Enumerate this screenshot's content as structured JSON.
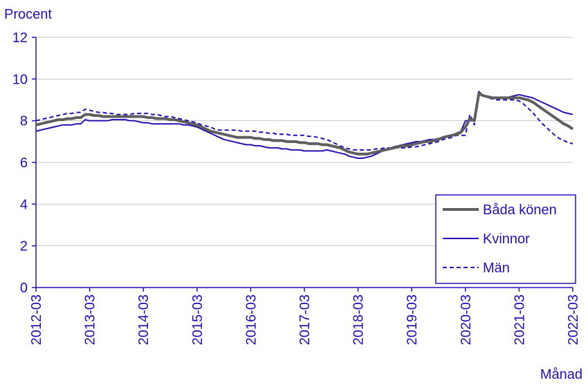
{
  "chart_data": {
    "type": "line",
    "y_label": "Procent",
    "x_label": "Månad",
    "x": [
      "2012-03",
      "2012-04",
      "2012-05",
      "2012-06",
      "2012-07",
      "2012-08",
      "2012-09",
      "2012-10",
      "2012-11",
      "2012-12",
      "2013-01",
      "2013-02",
      "2013-03",
      "2013-04",
      "2013-05",
      "2013-06",
      "2013-07",
      "2013-08",
      "2013-09",
      "2013-10",
      "2013-11",
      "2013-12",
      "2014-01",
      "2014-02",
      "2014-03",
      "2014-04",
      "2014-05",
      "2014-06",
      "2014-07",
      "2014-08",
      "2014-09",
      "2014-10",
      "2014-11",
      "2014-12",
      "2015-01",
      "2015-02",
      "2015-03",
      "2015-04",
      "2015-05",
      "2015-06",
      "2015-07",
      "2015-08",
      "2015-09",
      "2015-10",
      "2015-11",
      "2015-12",
      "2016-01",
      "2016-02",
      "2016-03",
      "2016-04",
      "2016-05",
      "2016-06",
      "2016-07",
      "2016-08",
      "2016-09",
      "2016-10",
      "2016-11",
      "2016-12",
      "2017-01",
      "2017-02",
      "2017-03",
      "2017-04",
      "2017-05",
      "2017-06",
      "2017-07",
      "2017-08",
      "2017-09",
      "2017-10",
      "2017-11",
      "2017-12",
      "2018-01",
      "2018-02",
      "2018-03",
      "2018-04",
      "2018-05",
      "2018-06",
      "2018-07",
      "2018-08",
      "2018-09",
      "2018-10",
      "2018-11",
      "2018-12",
      "2019-01",
      "2019-02",
      "2019-03",
      "2019-04",
      "2019-05",
      "2019-06",
      "2019-07",
      "2019-08",
      "2019-09",
      "2019-10",
      "2019-11",
      "2019-12",
      "2020-01",
      "2020-02",
      "2020-03",
      "2020-04",
      "2020-05",
      "2020-06",
      "2020-07",
      "2020-08",
      "2020-09",
      "2020-10",
      "2020-11",
      "2020-12",
      "2021-01",
      "2021-02",
      "2021-03",
      "2021-04",
      "2021-05",
      "2021-06",
      "2021-07",
      "2021-08",
      "2021-09",
      "2021-10",
      "2021-11",
      "2021-12",
      "2022-01",
      "2022-02",
      "2022-03"
    ],
    "xticks": [
      "2012-03",
      "2013-03",
      "2014-03",
      "2015-03",
      "2016-03",
      "2017-03",
      "2018-03",
      "2019-03",
      "2020-03",
      "2021-03",
      "2022-03"
    ],
    "ylim": [
      0,
      12
    ],
    "yticks": [
      0,
      2,
      4,
      6,
      8,
      10,
      12
    ],
    "grid": true,
    "legend": "lower right",
    "series": [
      {
        "name": "Båda könen",
        "color": "#5f5f5f",
        "style": "solid",
        "width": 4,
        "values": [
          7.8,
          7.85,
          7.9,
          7.95,
          8.0,
          8.05,
          8.05,
          8.1,
          8.1,
          8.15,
          8.15,
          8.3,
          8.3,
          8.25,
          8.25,
          8.2,
          8.2,
          8.2,
          8.2,
          8.2,
          8.2,
          8.2,
          8.2,
          8.2,
          8.2,
          8.15,
          8.15,
          8.1,
          8.1,
          8.1,
          8.05,
          8.05,
          8.0,
          7.95,
          7.9,
          7.85,
          7.8,
          7.7,
          7.6,
          7.5,
          7.45,
          7.4,
          7.35,
          7.3,
          7.25,
          7.2,
          7.2,
          7.2,
          7.2,
          7.15,
          7.15,
          7.1,
          7.1,
          7.05,
          7.05,
          7.05,
          7.0,
          7.0,
          7.0,
          6.95,
          6.95,
          6.9,
          6.9,
          6.9,
          6.85,
          6.85,
          6.8,
          6.75,
          6.7,
          6.6,
          6.5,
          6.45,
          6.4,
          6.4,
          6.4,
          6.45,
          6.5,
          6.55,
          6.6,
          6.65,
          6.7,
          6.75,
          6.8,
          6.8,
          6.85,
          6.9,
          6.95,
          7.0,
          7.0,
          7.05,
          7.1,
          7.2,
          7.25,
          7.3,
          7.35,
          7.45,
          7.7,
          8.1,
          8.0,
          9.3,
          9.2,
          9.15,
          9.1,
          9.1,
          9.1,
          9.1,
          9.1,
          9.1,
          9.1,
          9.05,
          9.0,
          8.9,
          8.75,
          8.6,
          8.45,
          8.3,
          8.15,
          8.0,
          7.85,
          7.75,
          7.6
        ]
      },
      {
        "name": "Kvinnor",
        "color": "#2210b4",
        "style": "solid",
        "width": 2,
        "values": [
          7.5,
          7.55,
          7.6,
          7.65,
          7.7,
          7.75,
          7.8,
          7.8,
          7.8,
          7.85,
          7.85,
          8.05,
          8.0,
          8.0,
          8.0,
          8.0,
          8.0,
          8.05,
          8.05,
          8.05,
          8.05,
          8.0,
          8.0,
          7.95,
          7.9,
          7.9,
          7.85,
          7.85,
          7.85,
          7.85,
          7.85,
          7.85,
          7.85,
          7.8,
          7.8,
          7.75,
          7.7,
          7.6,
          7.5,
          7.4,
          7.3,
          7.2,
          7.1,
          7.05,
          7.0,
          6.95,
          6.9,
          6.85,
          6.85,
          6.8,
          6.8,
          6.75,
          6.7,
          6.7,
          6.7,
          6.65,
          6.65,
          6.6,
          6.6,
          6.6,
          6.55,
          6.55,
          6.55,
          6.55,
          6.55,
          6.6,
          6.55,
          6.5,
          6.45,
          6.4,
          6.3,
          6.25,
          6.2,
          6.2,
          6.25,
          6.3,
          6.4,
          6.5,
          6.6,
          6.65,
          6.75,
          6.8,
          6.85,
          6.9,
          6.95,
          7.0,
          7.0,
          7.05,
          7.1,
          7.1,
          7.15,
          7.2,
          7.25,
          7.3,
          7.4,
          7.5,
          8.0,
          8.0,
          8.0,
          9.25,
          9.2,
          9.15,
          9.1,
          9.1,
          9.1,
          9.1,
          9.15,
          9.2,
          9.25,
          9.2,
          9.15,
          9.1,
          9.0,
          8.9,
          8.8,
          8.7,
          8.6,
          8.5,
          8.4,
          8.35,
          8.3
        ]
      },
      {
        "name": "Män",
        "color": "#2210b4",
        "style": "dashed",
        "width": 2,
        "values": [
          8.0,
          8.05,
          8.1,
          8.15,
          8.2,
          8.25,
          8.3,
          8.35,
          8.35,
          8.4,
          8.4,
          8.55,
          8.5,
          8.45,
          8.4,
          8.4,
          8.35,
          8.35,
          8.3,
          8.3,
          8.3,
          8.3,
          8.35,
          8.35,
          8.35,
          8.35,
          8.3,
          8.3,
          8.25,
          8.2,
          8.2,
          8.15,
          8.1,
          8.05,
          8.0,
          7.95,
          7.9,
          7.8,
          7.75,
          7.7,
          7.6,
          7.55,
          7.55,
          7.55,
          7.55,
          7.55,
          7.5,
          7.5,
          7.5,
          7.5,
          7.45,
          7.45,
          7.4,
          7.4,
          7.35,
          7.35,
          7.35,
          7.3,
          7.3,
          7.3,
          7.3,
          7.25,
          7.25,
          7.2,
          7.15,
          7.1,
          7.0,
          6.9,
          6.8,
          6.7,
          6.65,
          6.6,
          6.6,
          6.6,
          6.6,
          6.6,
          6.65,
          6.65,
          6.7,
          6.7,
          6.7,
          6.7,
          6.7,
          6.7,
          6.75,
          6.75,
          6.8,
          6.85,
          6.9,
          6.95,
          7.0,
          7.1,
          7.15,
          7.2,
          7.3,
          7.3,
          7.3,
          8.3,
          7.8,
          9.4,
          9.2,
          9.1,
          9.05,
          9.0,
          9.0,
          9.0,
          9.0,
          9.0,
          8.95,
          8.8,
          8.6,
          8.4,
          8.15,
          7.9,
          7.7,
          7.5,
          7.3,
          7.15,
          7.05,
          6.95,
          6.9
        ]
      }
    ]
  }
}
